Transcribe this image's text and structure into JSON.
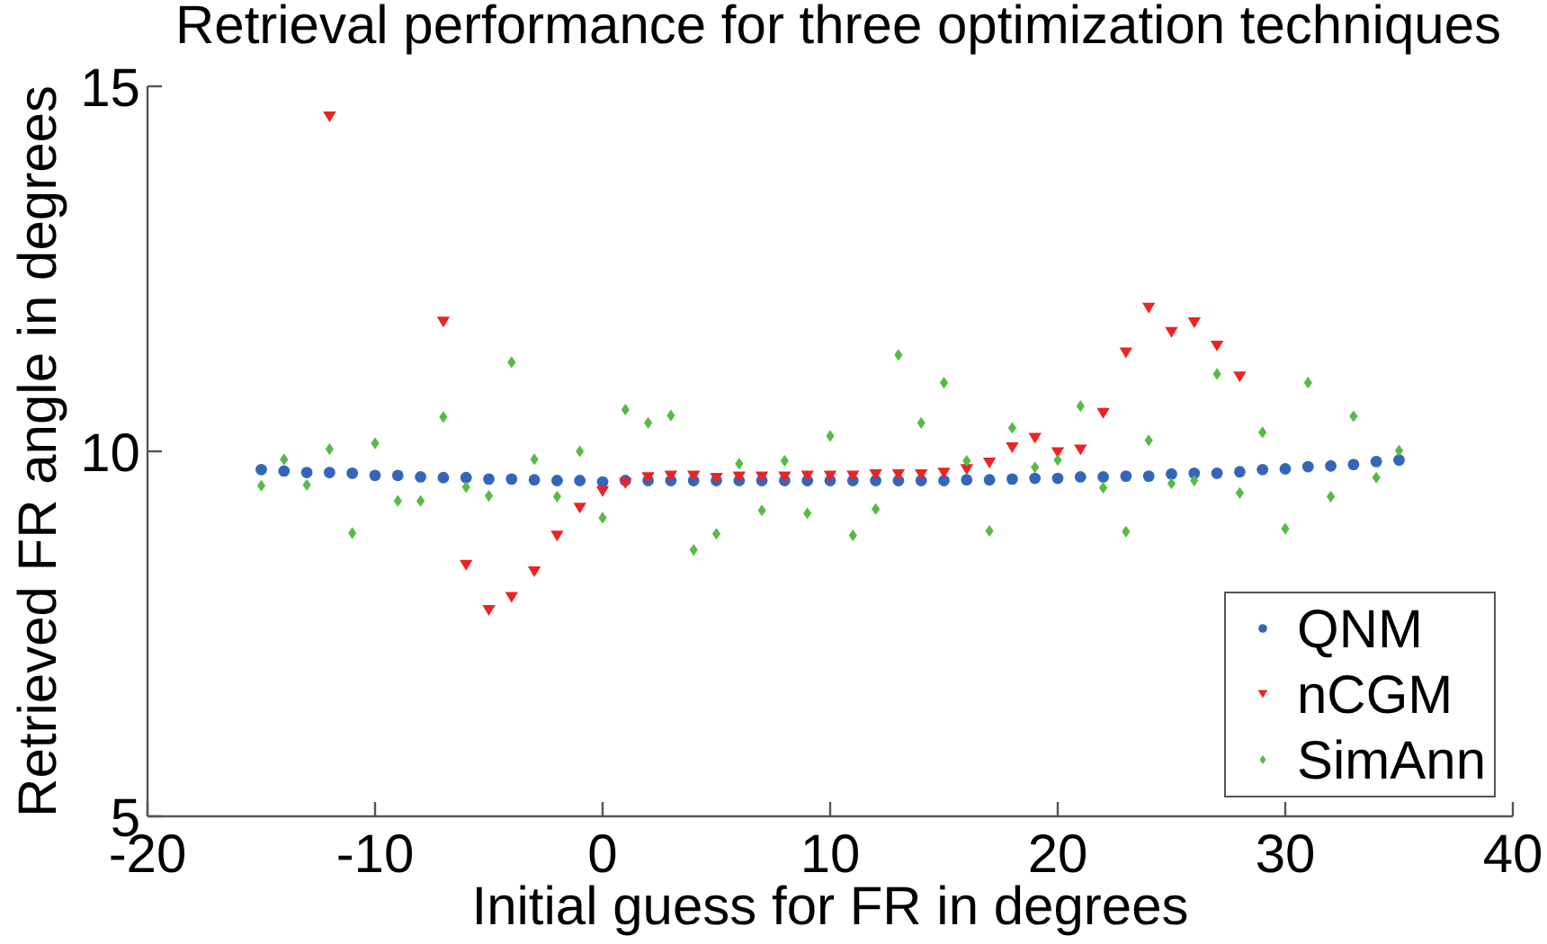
{
  "chart_data": {
    "type": "scatter",
    "title": "Retrieval performance for three optimization techniques",
    "xlabel": "Initial guess for FR in degrees",
    "ylabel": "Retrieved FR angle in degrees",
    "x": [
      -15,
      -14,
      -13,
      -12,
      -11,
      -10,
      -9,
      -8,
      -7,
      -6,
      -5,
      -4,
      -3,
      -2,
      -1,
      0,
      1,
      2,
      3,
      4,
      5,
      6,
      7,
      8,
      9,
      10,
      11,
      12,
      13,
      14,
      15,
      16,
      17,
      18,
      19,
      20,
      21,
      22,
      23,
      24,
      25,
      26,
      27,
      28,
      29,
      30,
      31,
      32,
      33,
      34,
      35
    ],
    "series": [
      {
        "name": "QNM",
        "color": "#3366bb",
        "marker": "circle",
        "values": [
          9.75,
          9.73,
          9.71,
          9.71,
          9.7,
          9.67,
          9.67,
          9.65,
          9.64,
          9.64,
          9.62,
          9.62,
          9.61,
          9.6,
          9.6,
          9.58,
          9.6,
          9.6,
          9.6,
          9.6,
          9.6,
          9.6,
          9.6,
          9.6,
          9.6,
          9.6,
          9.6,
          9.6,
          9.6,
          9.6,
          9.6,
          9.61,
          9.61,
          9.62,
          9.63,
          9.63,
          9.65,
          9.65,
          9.66,
          9.66,
          9.69,
          9.7,
          9.7,
          9.72,
          9.75,
          9.76,
          9.79,
          9.8,
          9.82,
          9.86,
          9.88
        ]
      },
      {
        "name": "nCGM",
        "color": "#ee2222",
        "marker": "triangle",
        "values": [
          null,
          null,
          null,
          14.58,
          null,
          null,
          null,
          null,
          11.77,
          8.44,
          7.82,
          8.0,
          8.35,
          8.84,
          9.22,
          9.45,
          9.56,
          9.64,
          9.66,
          9.66,
          9.63,
          9.65,
          9.65,
          9.65,
          9.66,
          9.66,
          9.66,
          9.68,
          9.68,
          9.68,
          9.7,
          9.75,
          9.84,
          10.05,
          10.18,
          9.98,
          10.02,
          10.52,
          11.35,
          11.96,
          11.63,
          11.76,
          11.44,
          11.02,
          null,
          null,
          null,
          null,
          null,
          null,
          null
        ]
      },
      {
        "name": "SimAnn",
        "color": "#55bb44",
        "marker": "diamond",
        "values": [
          9.53,
          9.89,
          9.54,
          10.03,
          8.88,
          10.11,
          9.32,
          9.32,
          10.47,
          9.51,
          9.39,
          11.22,
          9.89,
          9.38,
          10.0,
          9.09,
          10.57,
          10.39,
          10.49,
          8.65,
          8.87,
          9.83,
          9.19,
          9.87,
          9.15,
          10.21,
          8.85,
          9.21,
          11.32,
          10.39,
          10.94,
          9.87,
          8.91,
          10.32,
          9.78,
          9.88,
          10.62,
          9.5,
          8.9,
          10.15,
          9.56,
          9.6,
          11.06,
          9.43,
          10.26,
          8.94,
          10.94,
          9.38,
          10.48,
          9.64,
          10.01
        ]
      }
    ],
    "xlim": [
      -20,
      40
    ],
    "xticks": [
      -20,
      -10,
      0,
      10,
      20,
      30,
      40
    ],
    "ylim": [
      5,
      15
    ],
    "yticks": [
      5,
      10,
      15
    ],
    "legend": "bottom right"
  }
}
